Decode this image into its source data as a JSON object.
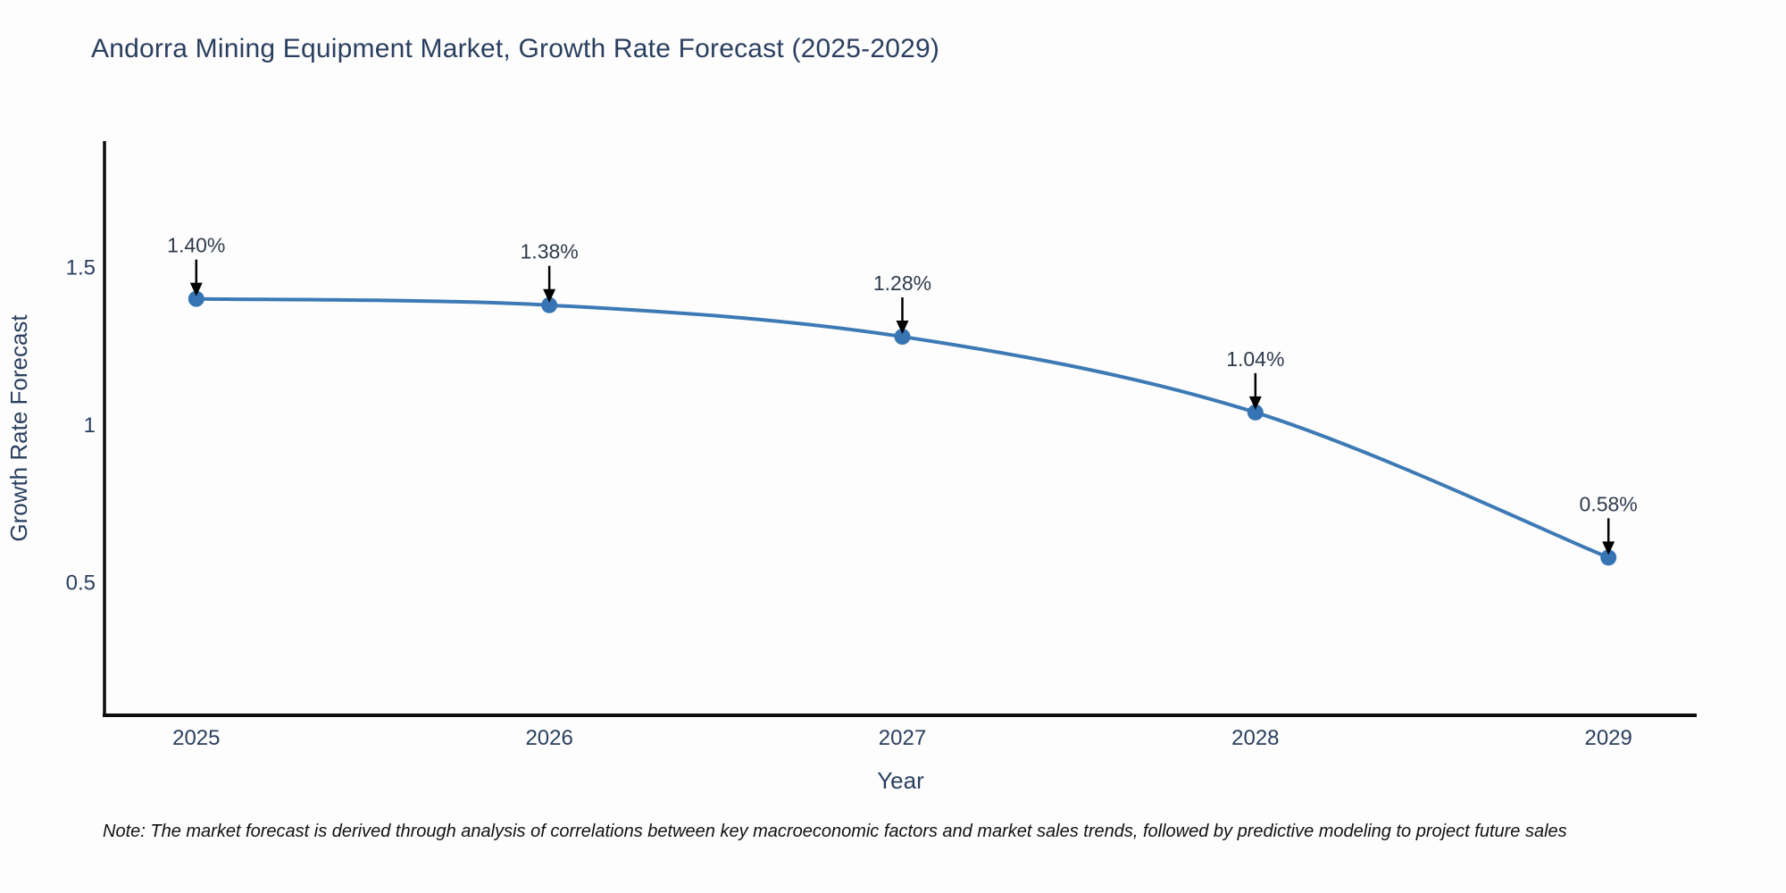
{
  "note": {
    "text": "Note: The market forecast is derived through analysis of correlations between key macroeconomic factors and market sales trends, followed by predictive modeling to project future sales"
  },
  "chart_data": {
    "type": "line",
    "title": "Andorra Mining Equipment Market, Growth Rate Forecast (2025-2029)",
    "x": [
      2025,
      2026,
      2027,
      2028,
      2029
    ],
    "series": [
      {
        "name": "Growth Rate Forecast",
        "values": [
          1.4,
          1.38,
          1.28,
          1.04,
          0.58
        ]
      }
    ],
    "point_labels": [
      "1.40%",
      "1.38%",
      "1.28%",
      "1.04%",
      "0.58%"
    ],
    "xlabel": "Year",
    "ylabel": "Growth Rate Forecast",
    "xticks": [
      "2025",
      "2026",
      "2027",
      "2028",
      "2029"
    ],
    "yticks": [
      {
        "value": 0.5,
        "label": "0.5"
      },
      {
        "value": 1.0,
        "label": "1"
      },
      {
        "value": 1.5,
        "label": "1.5"
      }
    ],
    "xlim": [
      2024.74,
      2029.25
    ],
    "ylim": [
      0.08,
      1.9
    ],
    "grid": false,
    "legend": "none",
    "line_shape": "spline",
    "colors": {
      "line": "#3d7ab5",
      "marker": "#3674b3",
      "annotation_arrow": "#000000",
      "axis": "#0d0d0d",
      "tick_text": "#2a3f5f",
      "axis_title_text": "#2a3f5f",
      "annotation_text": "#2f3b4c"
    }
  }
}
